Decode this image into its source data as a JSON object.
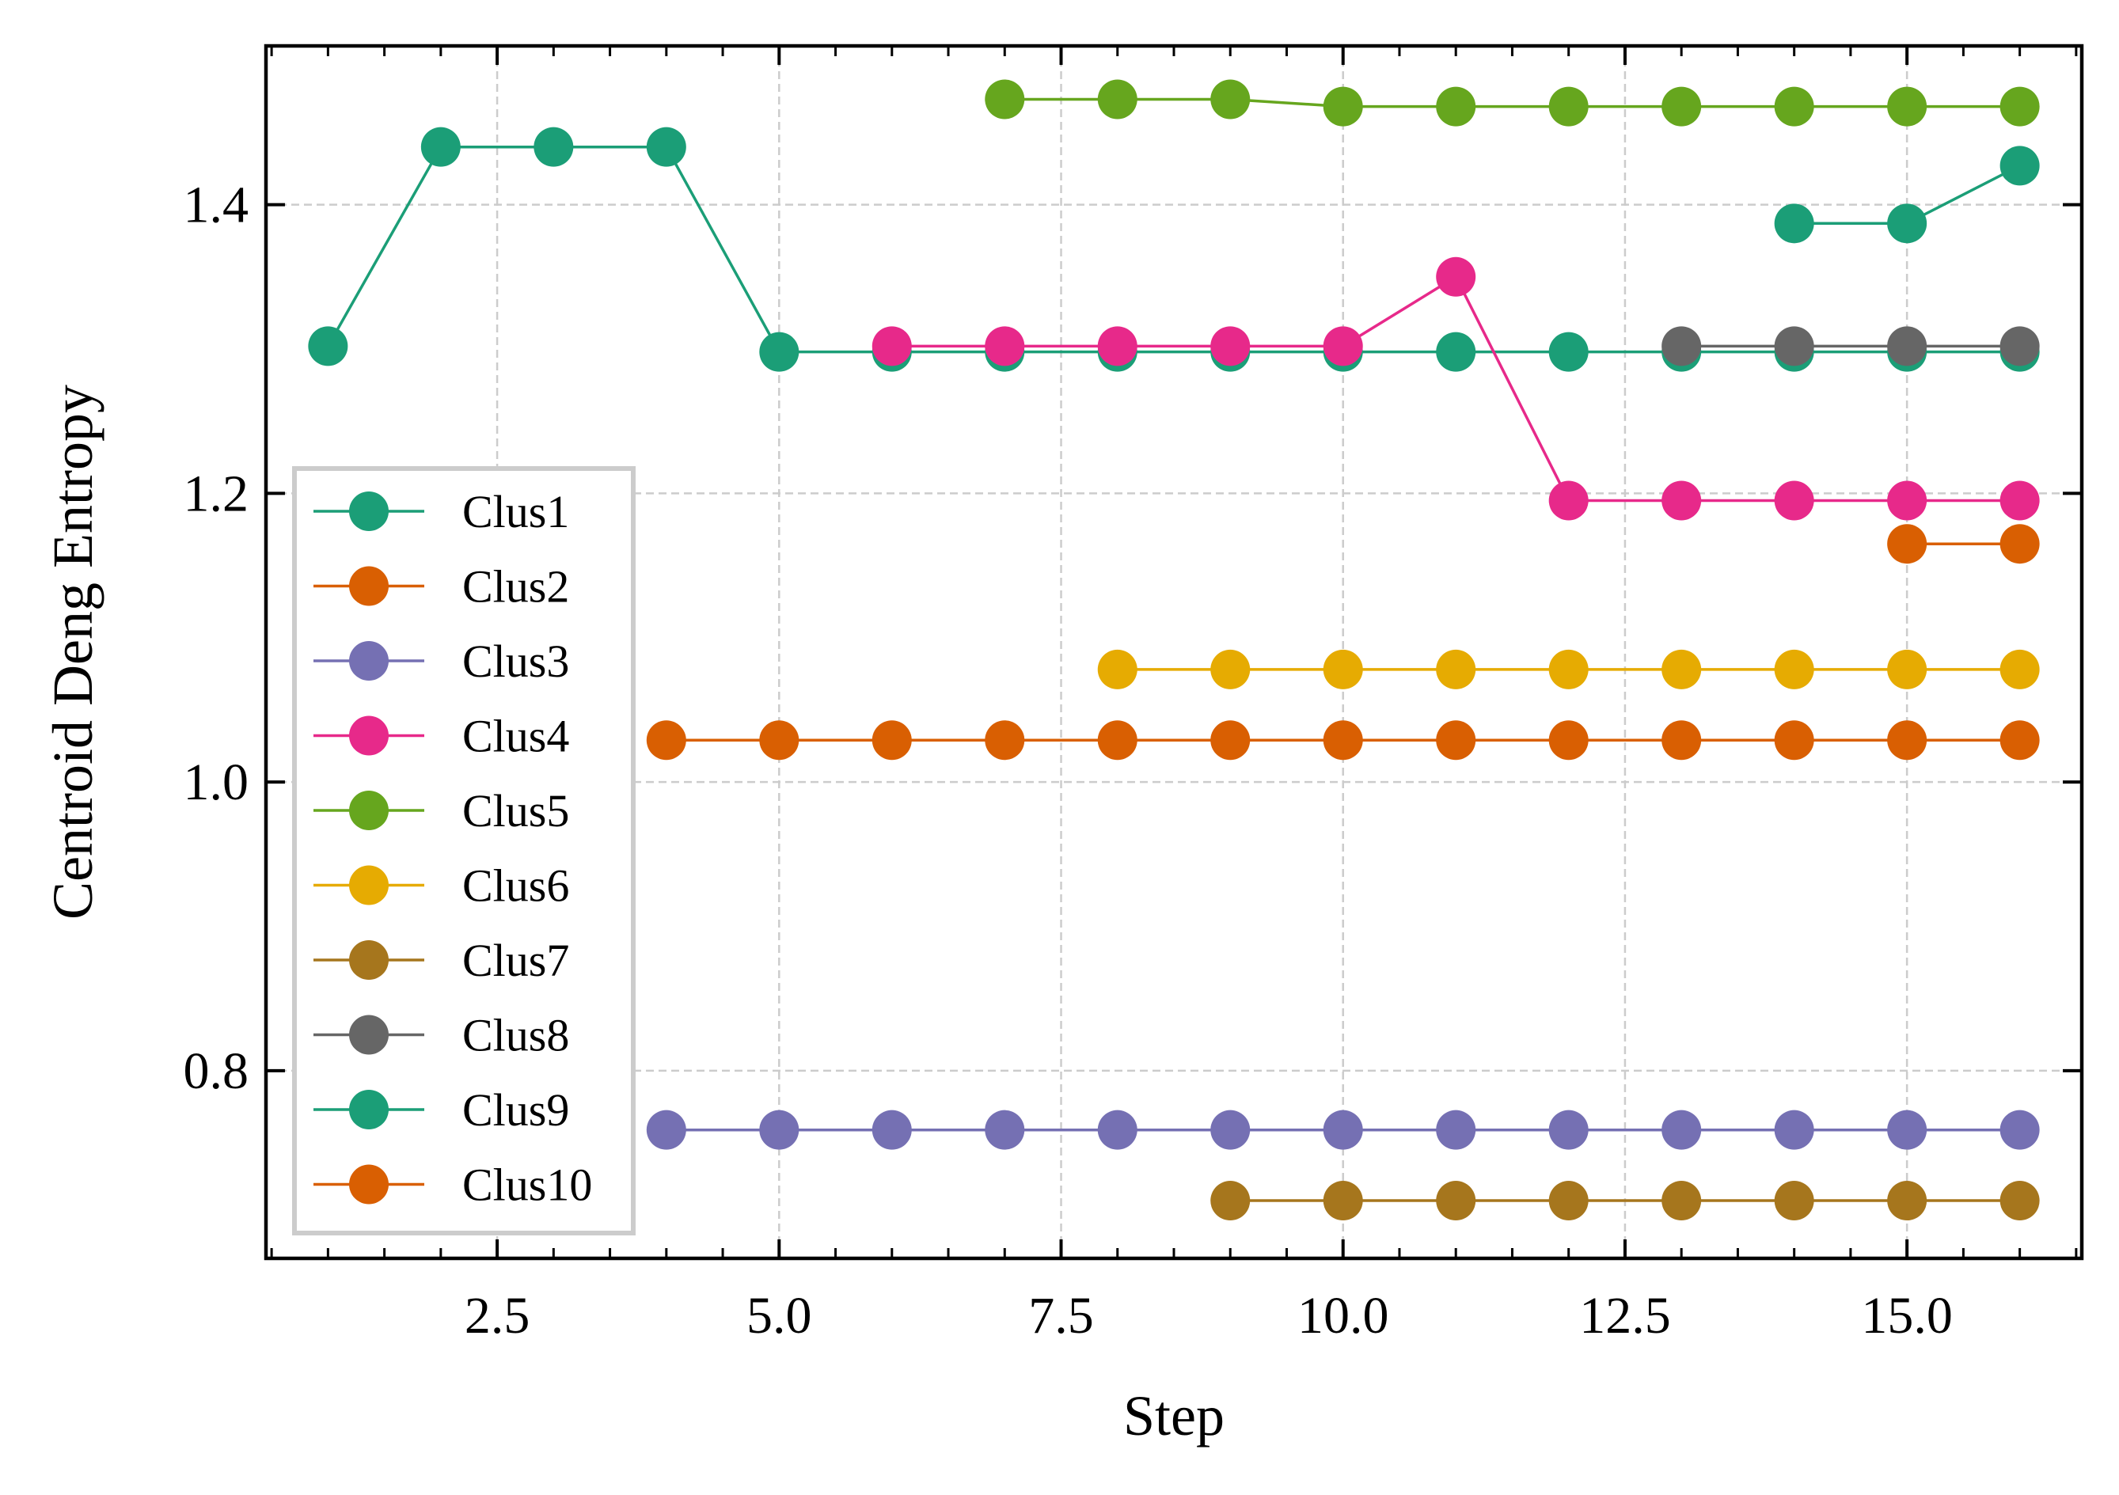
{
  "chart_data": {
    "type": "line",
    "title": "",
    "xlabel": "Step",
    "ylabel": "Centroid Deng Entropy",
    "xlim": [
      0.45,
      16.55
    ],
    "ylim": [
      0.67,
      1.51
    ],
    "xticks": [
      2.5,
      5.0,
      7.5,
      10.0,
      12.5,
      15.0
    ],
    "xtick_labels": [
      "2.5",
      "5.0",
      "7.5",
      "10.0",
      "12.5",
      "15.0"
    ],
    "xminor_step": 0.5,
    "yticks": [
      0.8,
      1.0,
      1.2,
      1.4
    ],
    "ytick_labels": [
      "0.8",
      "1.0",
      "1.2",
      "1.4"
    ],
    "grid": true,
    "legend_position": "lower-left",
    "series": [
      {
        "name": "Clus1",
        "color": "#1b9e77",
        "points": [
          [
            1,
            1.302
          ],
          [
            2,
            1.44
          ],
          [
            3,
            1.44
          ],
          [
            4,
            1.44
          ],
          [
            5,
            1.298
          ],
          [
            6,
            1.298
          ],
          [
            7,
            1.298
          ],
          [
            8,
            1.298
          ],
          [
            9,
            1.298
          ],
          [
            10,
            1.298
          ],
          [
            11,
            1.298
          ],
          [
            12,
            1.298
          ],
          [
            13,
            1.298
          ],
          [
            14,
            1.298
          ],
          [
            15,
            1.298
          ],
          [
            16,
            1.298
          ]
        ]
      },
      {
        "name": "Clus2",
        "color": "#d95f02",
        "points": [
          [
            4,
            1.029
          ],
          [
            5,
            1.029
          ],
          [
            6,
            1.029
          ],
          [
            7,
            1.029
          ],
          [
            8,
            1.029
          ],
          [
            9,
            1.029
          ],
          [
            10,
            1.029
          ],
          [
            11,
            1.029
          ],
          [
            12,
            1.029
          ],
          [
            13,
            1.029
          ],
          [
            14,
            1.029
          ],
          [
            15,
            1.029
          ],
          [
            16,
            1.029
          ]
        ]
      },
      {
        "name": "Clus3",
        "color": "#7570b3",
        "points": [
          [
            4,
            0.759
          ],
          [
            5,
            0.759
          ],
          [
            6,
            0.759
          ],
          [
            7,
            0.759
          ],
          [
            8,
            0.759
          ],
          [
            9,
            0.759
          ],
          [
            10,
            0.759
          ],
          [
            11,
            0.759
          ],
          [
            12,
            0.759
          ],
          [
            13,
            0.759
          ],
          [
            14,
            0.759
          ],
          [
            15,
            0.759
          ],
          [
            16,
            0.759
          ]
        ]
      },
      {
        "name": "Clus4",
        "color": "#e7298a",
        "points": [
          [
            6,
            1.302
          ],
          [
            7,
            1.302
          ],
          [
            8,
            1.302
          ],
          [
            9,
            1.302
          ],
          [
            10,
            1.302
          ],
          [
            11,
            1.35
          ],
          [
            12,
            1.195
          ],
          [
            13,
            1.195
          ],
          [
            14,
            1.195
          ],
          [
            15,
            1.195
          ],
          [
            16,
            1.195
          ]
        ]
      },
      {
        "name": "Clus5",
        "color": "#66a61e",
        "points": [
          [
            7,
            1.473
          ],
          [
            8,
            1.473
          ],
          [
            9,
            1.473
          ],
          [
            10,
            1.468
          ],
          [
            11,
            1.468
          ],
          [
            12,
            1.468
          ],
          [
            13,
            1.468
          ],
          [
            14,
            1.468
          ],
          [
            15,
            1.468
          ],
          [
            16,
            1.468
          ]
        ]
      },
      {
        "name": "Clus6",
        "color": "#e6ab02",
        "points": [
          [
            8,
            1.078
          ],
          [
            9,
            1.078
          ],
          [
            10,
            1.078
          ],
          [
            11,
            1.078
          ],
          [
            12,
            1.078
          ],
          [
            13,
            1.078
          ],
          [
            14,
            1.078
          ],
          [
            15,
            1.078
          ],
          [
            16,
            1.078
          ]
        ]
      },
      {
        "name": "Clus7",
        "color": "#a6761d",
        "points": [
          [
            9,
            0.71
          ],
          [
            10,
            0.71
          ],
          [
            11,
            0.71
          ],
          [
            12,
            0.71
          ],
          [
            13,
            0.71
          ],
          [
            14,
            0.71
          ],
          [
            15,
            0.71
          ],
          [
            16,
            0.71
          ]
        ]
      },
      {
        "name": "Clus8",
        "color": "#666666",
        "points": [
          [
            13,
            1.302
          ],
          [
            14,
            1.302
          ],
          [
            15,
            1.302
          ],
          [
            16,
            1.302
          ]
        ]
      },
      {
        "name": "Clus9",
        "color": "#1b9e77",
        "points": [
          [
            14,
            1.387
          ],
          [
            15,
            1.387
          ],
          [
            16,
            1.427
          ]
        ]
      },
      {
        "name": "Clus10",
        "color": "#d95f02",
        "points": [
          [
            15,
            1.165
          ],
          [
            16,
            1.165
          ]
        ]
      }
    ]
  }
}
